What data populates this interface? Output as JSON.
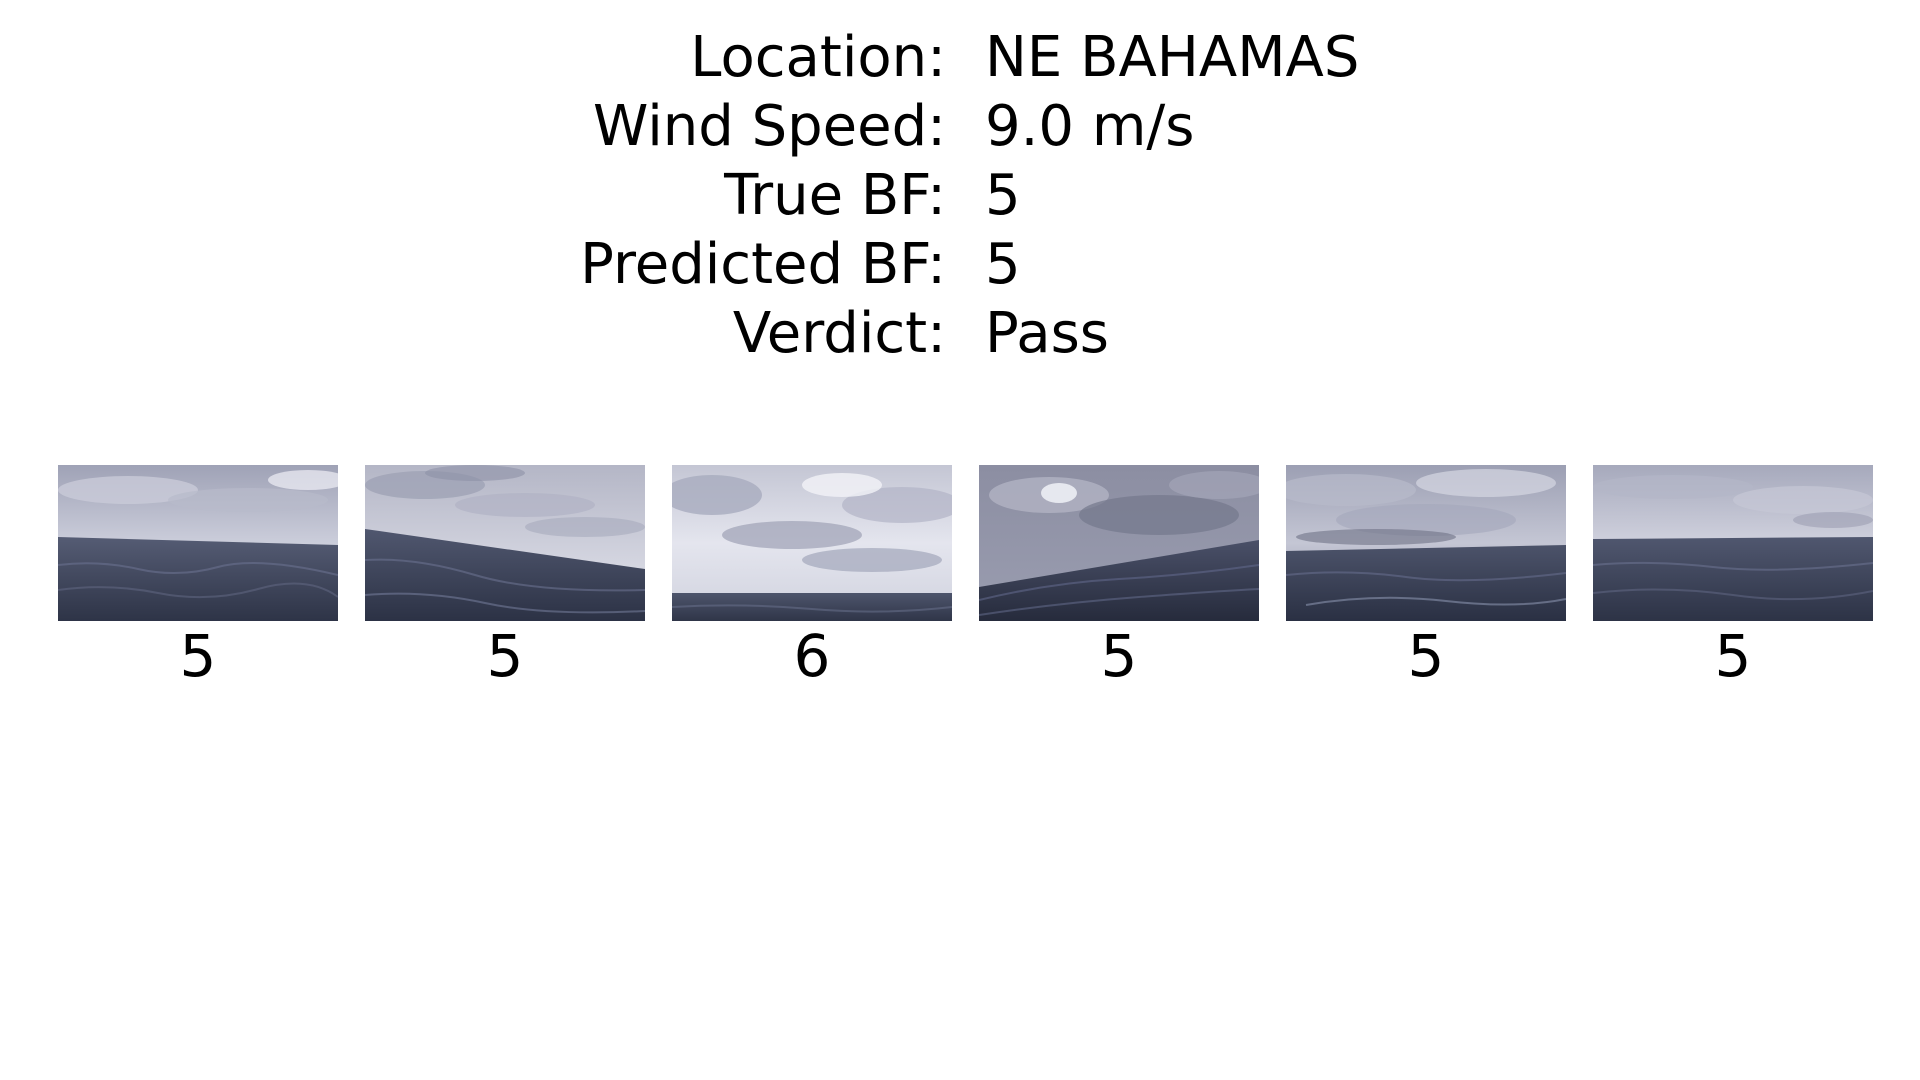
{
  "info": {
    "location_label": "Location:",
    "location_value": "NE BAHAMAS",
    "wind_label": "Wind Speed:",
    "wind_value": "9.0 m/s",
    "true_label": "True BF:",
    "true_value": "5",
    "predicted_label": "Predicted BF:",
    "predicted_value": "5",
    "verdict_label": "Verdict:",
    "verdict_value": "Pass"
  },
  "thumbnails": [
    {
      "prediction": "5"
    },
    {
      "prediction": "5"
    },
    {
      "prediction": "6"
    },
    {
      "prediction": "5"
    },
    {
      "prediction": "5"
    },
    {
      "prediction": "5"
    }
  ],
  "colors": {
    "sky_light": "#e6e7f0",
    "sky_dark": "#8a8c9e",
    "sea_light": "#5a6178",
    "sea_dark": "#2c3246"
  }
}
